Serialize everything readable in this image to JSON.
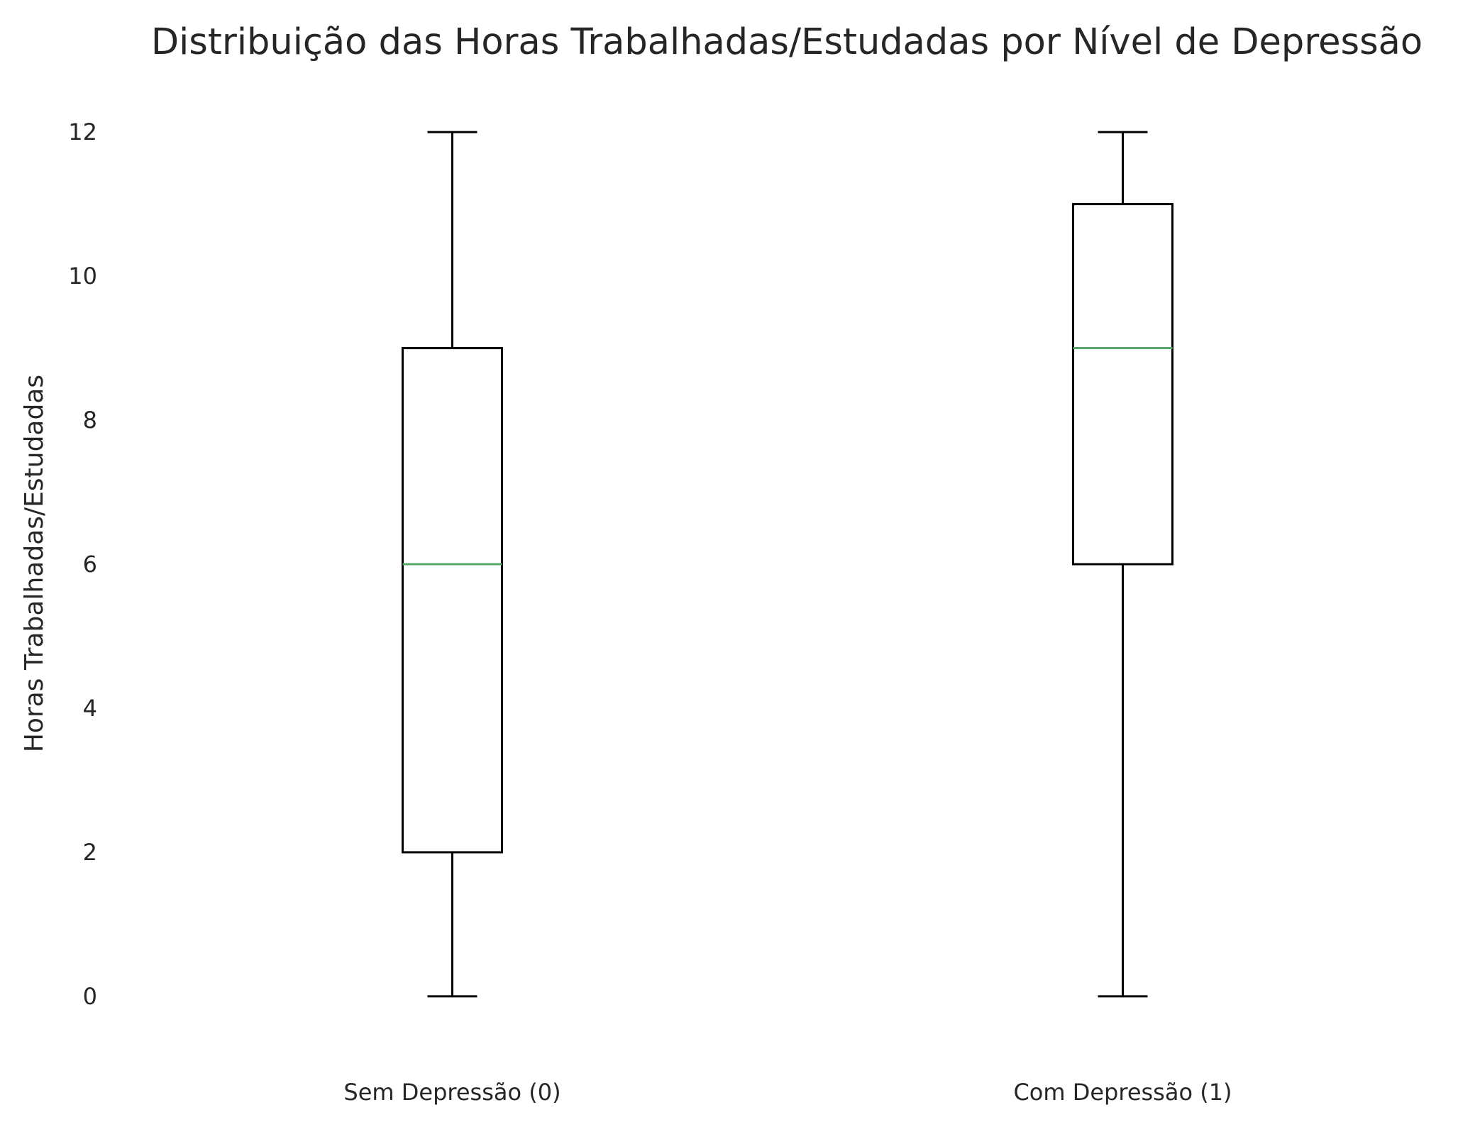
{
  "chart_data": {
    "type": "box",
    "title": "Distribuição das Horas Trabalhadas/Estudadas por Nível de Depressão",
    "xlabel": "",
    "ylabel": "Horas Trabalhadas/Estudadas",
    "ylim": [
      -0.75,
      12.75
    ],
    "yticks": [
      0,
      2,
      4,
      6,
      8,
      10,
      12
    ],
    "categories": [
      "Sem Depressão (0)",
      "Com Depressão (1)"
    ],
    "boxes": [
      {
        "category": "Sem Depressão (0)",
        "min": 0,
        "q1": 2,
        "median": 6,
        "q3": 9,
        "max": 12
      },
      {
        "category": "Com Depressão (1)",
        "min": 0,
        "q1": 6,
        "median": 9,
        "q3": 11,
        "max": 12
      }
    ],
    "grid": false,
    "colors": {
      "box": "#000000",
      "median": "#55a868",
      "text": "#262626",
      "background": "#ffffff"
    }
  }
}
